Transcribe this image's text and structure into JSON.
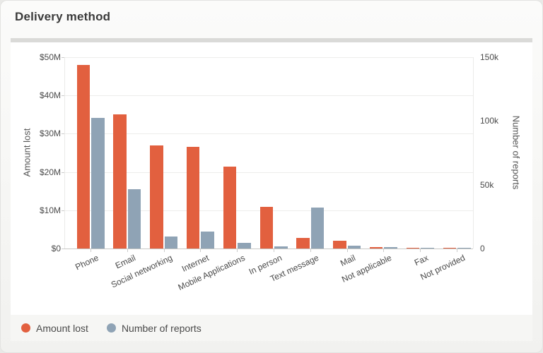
{
  "page": {
    "title": "Delivery method"
  },
  "colors": {
    "amount_lost": "#e2603f",
    "number_of_reports": "#8fa3b5",
    "gridline": "#ededeb",
    "axis_line": "#c7c7c5"
  },
  "legend": [
    {
      "label": "Amount lost",
      "color": "#e2603f"
    },
    {
      "label": "Number of reports",
      "color": "#8fa3b5"
    }
  ],
  "chart_data": {
    "type": "bar",
    "title": "Delivery method",
    "categories": [
      "Phone",
      "Email",
      "Social networking",
      "Internet",
      "Mobile Applications",
      "In person",
      "Text message",
      "Mail",
      "Not applicable",
      "Fax",
      "Not provided"
    ],
    "series": [
      {
        "name": "Amount lost",
        "axis": "left",
        "color": "#e2603f",
        "unit": "million USD",
        "values": [
          48,
          35,
          27,
          26.5,
          21.4,
          10.9,
          2.8,
          2.0,
          0.4,
          0.15,
          0.1
        ]
      },
      {
        "name": "Number of reports",
        "axis": "right",
        "color": "#8fa3b5",
        "unit": "reports",
        "values": [
          102500,
          46500,
          9400,
          13500,
          4300,
          1500,
          32000,
          2400,
          1300,
          300,
          150
        ]
      }
    ],
    "left_axis": {
      "label": "Amount lost",
      "ticks": [
        "$0",
        "$10M",
        "$20M",
        "$30M",
        "$40M",
        "$50M"
      ],
      "min": 0,
      "max": 50
    },
    "right_axis": {
      "label": "Number of reports",
      "ticks": [
        "0",
        "50k",
        "100k",
        "150k"
      ],
      "min": 0,
      "max": 150000
    },
    "grid": true,
    "legend_position": "bottom"
  }
}
